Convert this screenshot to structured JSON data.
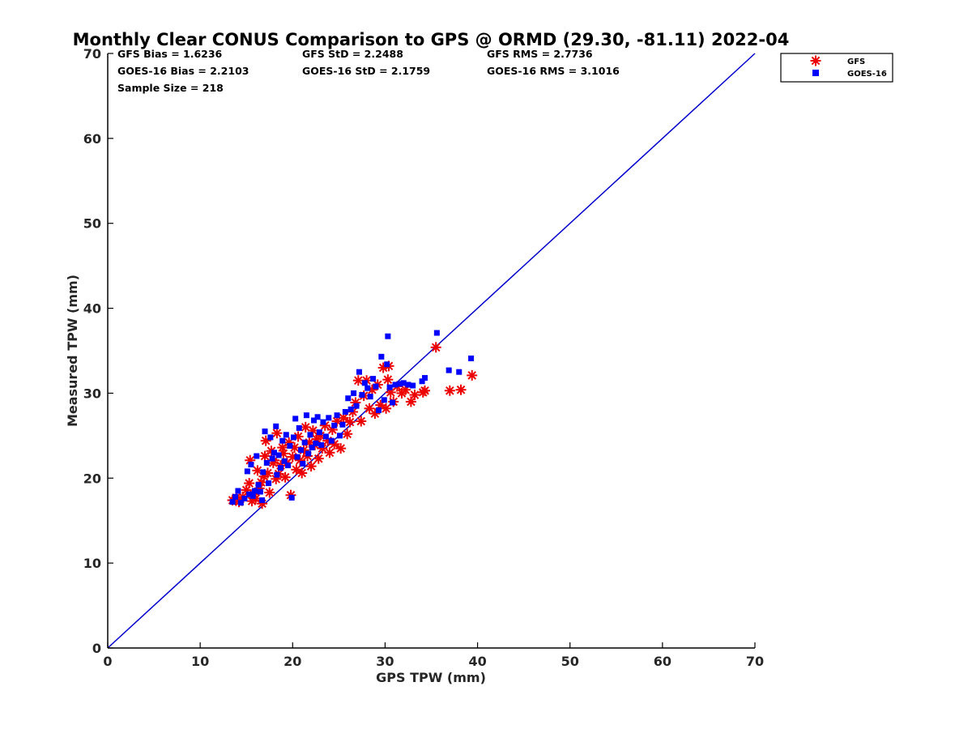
{
  "chart_data": {
    "type": "scatter",
    "title": "Monthly Clear CONUS Comparison to GPS @ ORMD (29.30, -81.11) 2022-04",
    "xlabel": "GPS TPW (mm)",
    "ylabel": "Measured TPW (mm)",
    "xlim": [
      0,
      70
    ],
    "ylim": [
      0,
      70
    ],
    "xticks": [
      "0",
      "10",
      "20",
      "30",
      "40",
      "50",
      "60",
      "70"
    ],
    "yticks": [
      "0",
      "10",
      "20",
      "30",
      "40",
      "50",
      "60",
      "70"
    ],
    "grid": false,
    "legend_position": "outside-top-right",
    "reference_line": {
      "name": "1:1 line",
      "x": [
        0,
        70
      ],
      "y": [
        0,
        70
      ],
      "color": "#0000cc"
    },
    "stats": [
      [
        "GFS Bias = 1.6236",
        "GFS StD = 2.2488",
        "GFS RMS = 2.7736"
      ],
      [
        "GOES-16 Bias = 2.2103",
        "GOES-16 StD = 2.1759",
        "GOES-16 RMS = 3.1016"
      ],
      [
        "Sample Size = 218",
        "",
        ""
      ]
    ],
    "series": [
      {
        "name": "GFS",
        "marker": "asterisk",
        "color": "#ee0000",
        "points": [
          [
            13.5,
            17.4
          ],
          [
            13.9,
            17.7
          ],
          [
            14.2,
            17.2
          ],
          [
            14.6,
            17.8
          ],
          [
            15.0,
            18.6
          ],
          [
            15.3,
            19.4
          ],
          [
            15.4,
            22.1
          ],
          [
            15.6,
            17.3
          ],
          [
            15.8,
            18.1
          ],
          [
            16.0,
            17.6
          ],
          [
            16.2,
            20.9
          ],
          [
            16.4,
            18.8
          ],
          [
            16.6,
            19.5
          ],
          [
            16.7,
            17.0
          ],
          [
            16.9,
            20.2
          ],
          [
            17.0,
            22.6
          ],
          [
            17.1,
            24.4
          ],
          [
            17.3,
            20.6
          ],
          [
            17.5,
            18.3
          ],
          [
            17.7,
            23.2
          ],
          [
            17.9,
            21.8
          ],
          [
            18.0,
            22.1
          ],
          [
            18.2,
            19.9
          ],
          [
            18.3,
            25.3
          ],
          [
            18.5,
            20.5
          ],
          [
            18.7,
            21.5
          ],
          [
            18.9,
            23.6
          ],
          [
            19.0,
            22.9
          ],
          [
            19.2,
            20.1
          ],
          [
            19.4,
            21.8
          ],
          [
            19.6,
            24.2
          ],
          [
            19.8,
            18.0
          ],
          [
            20.0,
            22.5
          ],
          [
            20.2,
            23.6
          ],
          [
            20.4,
            21.0
          ],
          [
            20.6,
            24.9
          ],
          [
            20.8,
            22.1
          ],
          [
            21.0,
            20.6
          ],
          [
            21.2,
            23.3
          ],
          [
            21.4,
            26.0
          ],
          [
            21.6,
            22.6
          ],
          [
            21.8,
            24.2
          ],
          [
            22.0,
            21.4
          ],
          [
            22.2,
            25.6
          ],
          [
            22.4,
            23.9
          ],
          [
            22.6,
            24.6
          ],
          [
            22.8,
            22.3
          ],
          [
            23.0,
            25.0
          ],
          [
            23.2,
            23.5
          ],
          [
            23.5,
            26.2
          ],
          [
            23.8,
            24.4
          ],
          [
            24.0,
            23.0
          ],
          [
            24.3,
            25.7
          ],
          [
            24.5,
            24.0
          ],
          [
            24.8,
            26.7
          ],
          [
            25.2,
            23.5
          ],
          [
            25.5,
            27.1
          ],
          [
            25.9,
            25.2
          ],
          [
            26.2,
            26.6
          ],
          [
            26.5,
            27.8
          ],
          [
            26.8,
            28.9
          ],
          [
            27.1,
            31.5
          ],
          [
            27.4,
            26.7
          ],
          [
            27.7,
            29.7
          ],
          [
            28.0,
            31.5
          ],
          [
            28.3,
            28.2
          ],
          [
            28.6,
            30.4
          ],
          [
            28.9,
            27.6
          ],
          [
            29.2,
            31.0
          ],
          [
            29.5,
            28.6
          ],
          [
            29.8,
            33.0
          ],
          [
            30.1,
            28.2
          ],
          [
            30.4,
            33.2
          ],
          [
            30.3,
            31.6
          ],
          [
            30.6,
            30.1
          ],
          [
            30.9,
            29.0
          ],
          [
            31.3,
            30.8
          ],
          [
            31.8,
            30.0
          ],
          [
            32.2,
            30.4
          ],
          [
            32.8,
            29.0
          ],
          [
            33.2,
            29.8
          ],
          [
            34.1,
            30.1
          ],
          [
            34.3,
            30.3
          ],
          [
            35.5,
            35.4
          ],
          [
            37.0,
            30.3
          ],
          [
            38.2,
            30.4
          ],
          [
            39.4,
            32.1
          ]
        ]
      },
      {
        "name": "GOES-16",
        "marker": "square",
        "color": "#0000ff",
        "points": [
          [
            13.5,
            17.2
          ],
          [
            13.8,
            17.8
          ],
          [
            14.1,
            18.5
          ],
          [
            14.4,
            17.1
          ],
          [
            14.8,
            17.6
          ],
          [
            15.1,
            20.8
          ],
          [
            15.3,
            18.1
          ],
          [
            15.5,
            21.6
          ],
          [
            15.7,
            17.9
          ],
          [
            15.9,
            18.5
          ],
          [
            16.1,
            22.6
          ],
          [
            16.3,
            19.2
          ],
          [
            16.5,
            18.4
          ],
          [
            16.7,
            17.4
          ],
          [
            16.8,
            20.7
          ],
          [
            17.0,
            25.5
          ],
          [
            17.2,
            21.8
          ],
          [
            17.4,
            19.4
          ],
          [
            17.6,
            24.8
          ],
          [
            17.8,
            22.3
          ],
          [
            18.0,
            23.0
          ],
          [
            18.2,
            26.1
          ],
          [
            18.3,
            20.4
          ],
          [
            18.5,
            22.7
          ],
          [
            18.7,
            21.2
          ],
          [
            18.9,
            24.4
          ],
          [
            19.1,
            22.0
          ],
          [
            19.3,
            25.1
          ],
          [
            19.5,
            21.5
          ],
          [
            19.7,
            23.8
          ],
          [
            19.9,
            17.7
          ],
          [
            20.1,
            24.8
          ],
          [
            20.3,
            27.0
          ],
          [
            20.5,
            22.5
          ],
          [
            20.7,
            25.9
          ],
          [
            20.9,
            23.3
          ],
          [
            21.1,
            21.7
          ],
          [
            21.3,
            24.2
          ],
          [
            21.5,
            27.4
          ],
          [
            21.7,
            22.9
          ],
          [
            21.9,
            25.1
          ],
          [
            22.1,
            23.6
          ],
          [
            22.3,
            26.8
          ],
          [
            22.5,
            24.1
          ],
          [
            22.7,
            27.2
          ],
          [
            22.9,
            25.4
          ],
          [
            23.1,
            23.9
          ],
          [
            23.3,
            26.6
          ],
          [
            23.6,
            24.9
          ],
          [
            23.9,
            27.1
          ],
          [
            24.2,
            24.4
          ],
          [
            24.5,
            26.2
          ],
          [
            24.8,
            27.4
          ],
          [
            25.1,
            25.0
          ],
          [
            25.4,
            26.3
          ],
          [
            25.7,
            27.8
          ],
          [
            26.0,
            29.4
          ],
          [
            26.3,
            28.1
          ],
          [
            26.6,
            30.0
          ],
          [
            26.9,
            28.5
          ],
          [
            27.2,
            32.5
          ],
          [
            27.5,
            29.8
          ],
          [
            27.8,
            31.2
          ],
          [
            28.1,
            30.6
          ],
          [
            28.4,
            29.6
          ],
          [
            28.7,
            31.7
          ],
          [
            29.0,
            30.8
          ],
          [
            29.3,
            28.0
          ],
          [
            29.6,
            34.3
          ],
          [
            29.9,
            29.2
          ],
          [
            30.2,
            33.4
          ],
          [
            30.3,
            36.7
          ],
          [
            30.5,
            30.7
          ],
          [
            30.8,
            28.9
          ],
          [
            31.1,
            31.0
          ],
          [
            31.6,
            31.1
          ],
          [
            32.0,
            31.2
          ],
          [
            32.5,
            31.0
          ],
          [
            33.0,
            30.9
          ],
          [
            34.0,
            31.4
          ],
          [
            34.3,
            31.8
          ],
          [
            35.6,
            37.1
          ],
          [
            36.9,
            32.7
          ],
          [
            38.0,
            32.5
          ],
          [
            39.3,
            34.1
          ]
        ]
      }
    ]
  }
}
